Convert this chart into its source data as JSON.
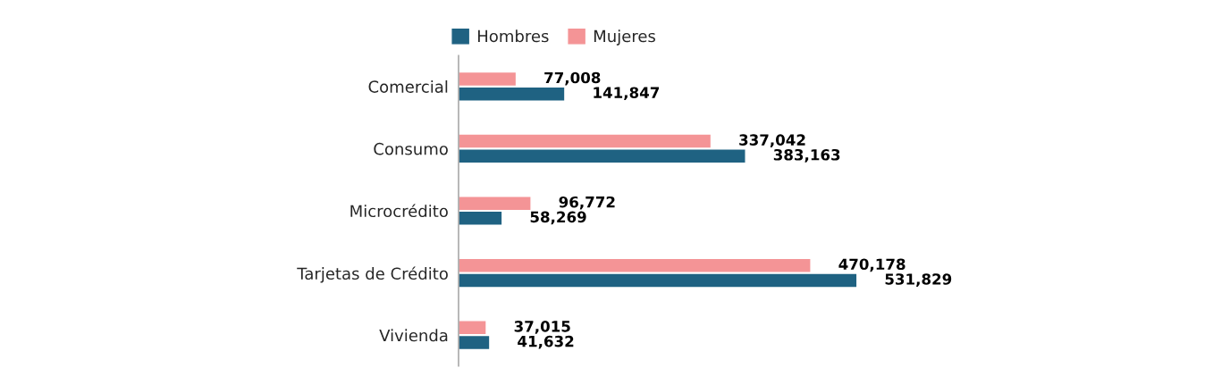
{
  "chart_data": {
    "type": "bar",
    "orientation": "horizontal",
    "categories": [
      "Comercial",
      "Consumo",
      "Microcrédito",
      "Tarjetas de Crédito",
      "Vivienda"
    ],
    "series": [
      {
        "name": "Hombres",
        "color": "#1f6282",
        "values": [
          141847,
          383163,
          58269,
          531829,
          41632
        ],
        "value_labels": [
          "141,847",
          "383,163",
          "58,269",
          "531,829",
          "41,632"
        ]
      },
      {
        "name": "Mujeres",
        "color": "#f49496",
        "values": [
          77008,
          337042,
          96772,
          470178,
          37015
        ],
        "value_labels": [
          "77,008",
          "337,042",
          "96,772",
          "470,178",
          "37,015"
        ]
      }
    ],
    "legend": "top",
    "grid": false
  }
}
